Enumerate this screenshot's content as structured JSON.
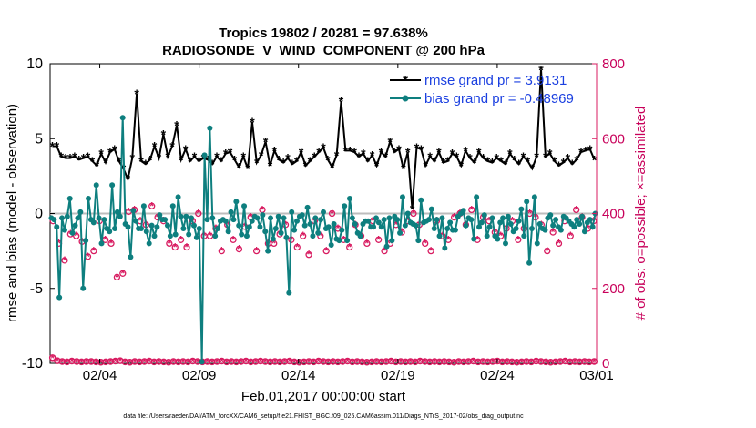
{
  "chart_data": {
    "type": "line",
    "title": "Tropics 19802 / 20281 = 97.638%",
    "subtitle": "RADIOSONDE_V_WIND_COMPONENT @ 200 hPa",
    "xlabel": "Feb.01,2017 00:00:00 start",
    "ylabel_left": "rmse and bias (model - observation)",
    "ylabel_right": "# of obs: o=possible; ×=assimilated",
    "footnote": "data file: /Users/raeder/DAI/ATM_forcXX/CAM6_setup/f.e21.FHIST_BGC.f09_025.CAM6assim.011/Diags_NTrS_2017-02/obs_diag_output.nc",
    "x_ticks": [
      "02/04",
      "02/09",
      "02/14",
      "02/19",
      "02/24",
      "03/01"
    ],
    "x_tick_values": [
      4,
      9,
      14,
      19,
      24,
      29
    ],
    "xlim": [
      1.5,
      29
    ],
    "ylim_left": [
      -10,
      10
    ],
    "ylim_right": [
      0,
      800
    ],
    "y_ticks_left": [
      "10",
      "5",
      "0",
      "-5",
      "-10"
    ],
    "y_tick_values_left": [
      10,
      5,
      0,
      -5,
      -10
    ],
    "y_ticks_right": [
      "800",
      "600",
      "400",
      "200",
      "0"
    ],
    "y_tick_values_right": [
      800,
      600,
      400,
      200,
      0
    ],
    "colors": {
      "rmse": "#000000",
      "bias": "#0e7f7f",
      "obs": "#d81b60",
      "legend_text": "#1a3fe0",
      "zero_line": "#bdbdbd"
    },
    "series": [
      {
        "name": "rmse grand pr = 3.9131",
        "axis": "left",
        "values": [
          4.5,
          4.5,
          3.8,
          3.7,
          3.7,
          3.8,
          3.6,
          3.7,
          3.8,
          3.5,
          3.2,
          4.0,
          3.4,
          4.1,
          4.3,
          3.5,
          3.0,
          2.3,
          3.7,
          8.0,
          3.5,
          3.3,
          3.6,
          4.5,
          3.7,
          5.3,
          3.8,
          4.5,
          5.9,
          3.6,
          4.3,
          3.5,
          3.8,
          3.5,
          3.7,
          3.6,
          3.3,
          3.8,
          3.5,
          4.0,
          4.1,
          3.6,
          3.1,
          3.8,
          3.0,
          6.1,
          3.4,
          3.9,
          4.8,
          3.2,
          4.2,
          3.6,
          3.4,
          3.7,
          3.3,
          3.5,
          4.1,
          3.2,
          3.5,
          3.8,
          4.1,
          4.4,
          3.6,
          3.1,
          3.9,
          7.5,
          4.2,
          4.2,
          4.1,
          3.8,
          4.0,
          3.5,
          3.9,
          3.2,
          4.1,
          3.8,
          4.8,
          4.1,
          4.3,
          3.0,
          4.1,
          0.3,
          4.4,
          4.3,
          3.2,
          3.8,
          3.5,
          4.1,
          3.4,
          3.5,
          4.0,
          3.8,
          3.2,
          4.2,
          3.7,
          3.4,
          4.1,
          3.7,
          3.5,
          3.4,
          3.7,
          3.5,
          3.3,
          4.0,
          3.6,
          3.3,
          3.8,
          3.5,
          3.0,
          3.8,
          9.6,
          3.8,
          4.0,
          3.5,
          3.2,
          3.4,
          3.7,
          3.3,
          3.6,
          4.1,
          4.2,
          4.3,
          3.6
        ],
        "markers": "*"
      },
      {
        "name": "bias grand pr = -0.48969",
        "axis": "left",
        "values": [
          -0.3,
          -0.4,
          -0.9,
          -5.6,
          -0.3,
          -1.1,
          -0.2,
          1.0,
          -1.3,
          -0.8,
          -0.3,
          0.1,
          -5.0,
          -1.8,
          1.0,
          -0.4,
          -0.6,
          1.9,
          -0.3,
          -2.0,
          -0.4,
          -1.0,
          -1.2,
          1.9,
          -1.0,
          0.1,
          -0.2,
          6.4,
          -0.7,
          -0.9,
          -2.9,
          0.2,
          -0.5,
          -1.0,
          -1.0,
          0.5,
          -1.2,
          -2.0,
          -0.8,
          -1.5,
          -0.9,
          -0.1,
          -0.4,
          -0.4,
          -0.8,
          -1.5,
          0.5,
          -1.4,
          1.1,
          -0.2,
          -1.0,
          -0.2,
          -1.4,
          -0.3,
          -0.8,
          -1.6,
          -1.0,
          -9.9,
          3.9,
          -0.4,
          5.7,
          -0.3,
          -1.5,
          -1.0,
          -0.5,
          -0.4,
          -0.5,
          -1.2,
          0.1,
          -0.4,
          0.8,
          -0.8,
          -1.4,
          0.5,
          -1.5,
          -0.9,
          -0.5,
          -0.2,
          -0.3,
          -0.9,
          -0.1,
          -1.2,
          -2.5,
          -0.3,
          -1.7,
          -1.0,
          -0.2,
          -1.3,
          -0.3,
          -1.6,
          -5.3,
          0.1,
          -1.1,
          -0.5,
          -0.2,
          -0.1,
          -0.8,
          0.4,
          -0.7,
          -1.5,
          -0.3,
          -1.3,
          -0.4,
          0.1,
          -1.0,
          -0.9,
          -2.1,
          -0.7,
          -1.7,
          -1.8,
          -1.1,
          0.5,
          -1.8,
          1.0,
          -0.3,
          -0.7,
          -1.3,
          -1.5,
          -0.7,
          -0.5,
          -0.5,
          -0.9,
          -0.9,
          -0.3,
          -0.6,
          -0.9,
          -0.4,
          -2.2,
          -0.3,
          -1.8,
          -0.2,
          -0.4,
          -1.3,
          1.1,
          -0.8,
          0.0,
          -0.6,
          -0.7,
          -0.8,
          -1.8,
          0.9,
          -0.6,
          -0.5,
          -0.4,
          0.3,
          -1.0,
          -0.4,
          -1.5,
          -0.3,
          -2.3,
          -1.0,
          -0.6,
          -1.1,
          -1.1,
          -0.2,
          0.0,
          0.2,
          -0.8,
          -0.3,
          -0.4,
          -1.7,
          1.1,
          -0.9,
          -0.6,
          -0.1,
          -1.5,
          -0.9,
          -0.3,
          -1.5,
          -1.7,
          -0.6,
          -0.3,
          -2.0,
          -0.2,
          -0.7,
          -1.2,
          -1.0,
          -0.5,
          0.3,
          -1.5,
          0.8,
          -3.3,
          -1.0,
          1.1,
          -2.0,
          -0.7,
          -1.0,
          -1.1,
          -0.3,
          -0.1,
          -0.8,
          -0.4,
          -0.9,
          -1.1,
          -0.2,
          -0.3,
          -0.5,
          -0.7,
          -0.9,
          -0.4,
          -0.7,
          -0.2,
          -1.2,
          -0.6,
          -0.4,
          -0.9,
          0.0
        ],
        "markers": "o"
      }
    ],
    "obs_possible": {
      "axis": "right",
      "values": [
        15,
        7,
        5,
        4,
        6,
        5,
        4,
        5,
        5,
        4,
        3,
        4,
        5,
        6,
        7,
        4,
        3,
        5,
        4,
        5,
        6,
        4,
        5,
        4,
        3,
        5,
        4,
        5,
        4,
        6,
        5,
        4,
        5,
        4,
        5,
        6,
        4,
        5,
        4,
        5,
        6,
        4,
        5,
        6,
        5,
        4,
        5,
        4,
        5,
        6,
        4,
        3,
        4,
        5,
        4,
        6,
        5,
        4,
        5,
        4,
        5,
        6,
        4,
        5,
        4,
        3,
        4,
        5,
        4,
        5,
        6,
        4,
        5,
        4,
        5,
        4,
        6,
        5,
        4,
        5,
        4,
        5,
        4,
        3,
        5,
        4,
        5,
        6,
        4,
        5,
        4,
        5,
        6,
        4,
        5,
        4,
        3,
        4,
        5,
        4,
        6,
        5,
        4,
        3,
        4,
        5,
        6,
        4,
        5,
        4,
        5,
        4,
        5
      ]
    },
    "obs_assimilated": {
      "axis": "right",
      "values": [
        380,
        320,
        275,
        345,
        340,
        325,
        285,
        300,
        380,
        330,
        320,
        230,
        240,
        405,
        410,
        380,
        370,
        420,
        390,
        380,
        320,
        310,
        330,
        310,
        380,
        400,
        340,
        340,
        360,
        300,
        370,
        330,
        305,
        365,
        390,
        300,
        410,
        320,
        320,
        345,
        370,
        330,
        310,
        340,
        290,
        380,
        340,
        300,
        400,
        360,
        330,
        310,
        370,
        340,
        320,
        380,
        330,
        300,
        320,
        370,
        350,
        380,
        400,
        370,
        320,
        300,
        380,
        340,
        330,
        390,
        400,
        370,
        410,
        330,
        390,
        380,
        350,
        340,
        360,
        380,
        330,
        360,
        400,
        390,
        370,
        300,
        350,
        320,
        380,
        340,
        410,
        390,
        360,
        380
      ]
    },
    "legend": [
      {
        "label": "rmse grand pr = 3.9131",
        "color": "#000000",
        "marker": "*"
      },
      {
        "label": "bias grand pr = -0.48969",
        "color": "#0e7f7f",
        "marker": "o"
      }
    ],
    "legend_position": "top-right"
  }
}
